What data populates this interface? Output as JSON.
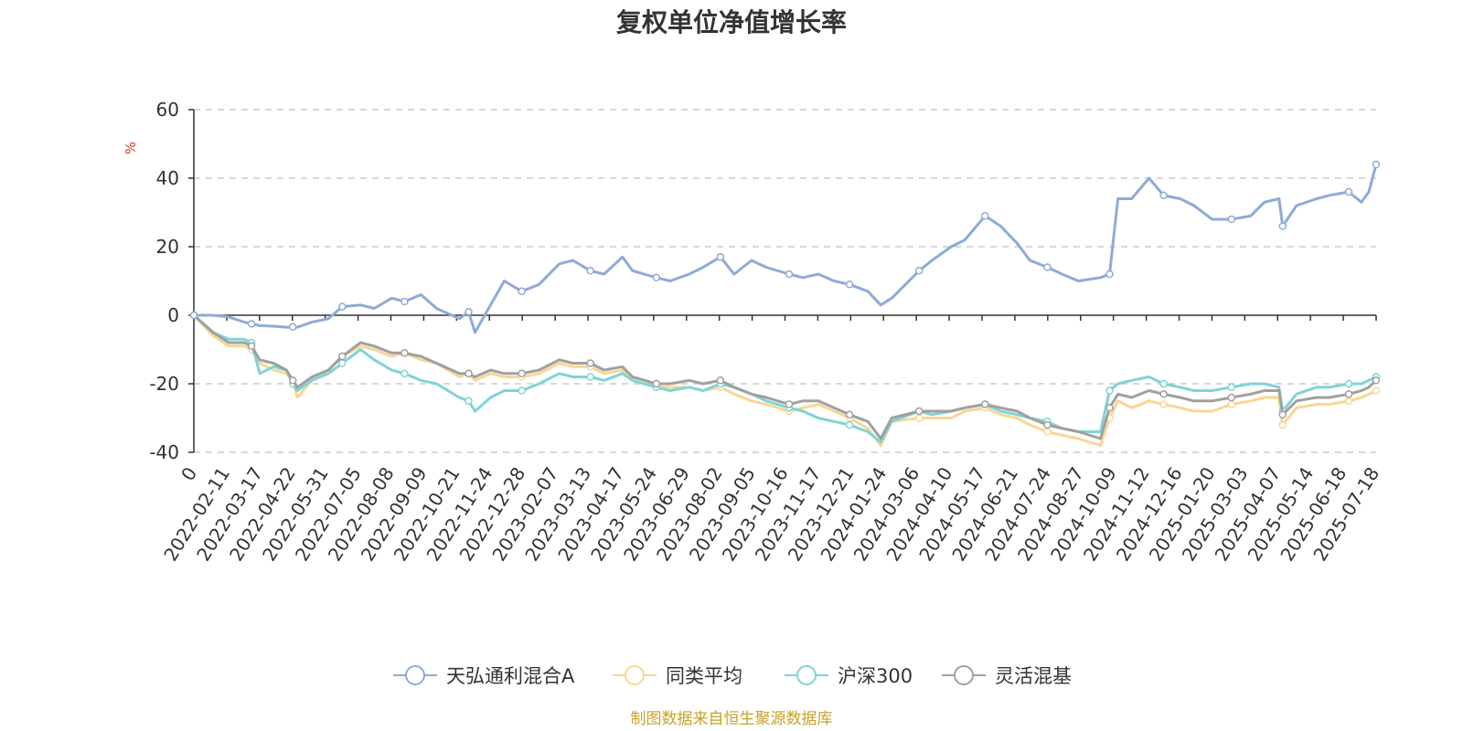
{
  "title": "复权单位净值增长率",
  "source_note": "制图数据来自恒生聚源数据库",
  "chart_data": {
    "type": "line",
    "title": "复权单位净值增长率",
    "ylabel": "%",
    "ylim": [
      -40,
      60
    ],
    "yticks": [
      60,
      40,
      20,
      0,
      -20,
      -40
    ],
    "grid": true,
    "legend_position": "bottom",
    "x_ticks": [
      "0",
      "2022-02-11",
      "2022-03-17",
      "2022-04-22",
      "2022-05-31",
      "2022-07-05",
      "2022-08-08",
      "2022-09-09",
      "2022-10-21",
      "2022-11-24",
      "2022-12-28",
      "2023-02-07",
      "2023-03-13",
      "2023-04-17",
      "2023-05-24",
      "2023-06-29",
      "2023-08-02",
      "2023-09-05",
      "2023-10-16",
      "2023-11-17",
      "2023-12-21",
      "2024-01-24",
      "2024-03-06",
      "2024-04-10",
      "2024-05-17",
      "2024-06-21",
      "2024-07-24",
      "2024-08-27",
      "2024-10-09",
      "2024-11-12",
      "2024-12-16",
      "2025-01-20",
      "2025-03-03",
      "2025-04-07",
      "2025-05-14",
      "2025-06-18",
      "2025-07-18"
    ],
    "x": [
      "2022-01-04",
      "2022-01-25",
      "2022-02-11",
      "2022-02-28",
      "2022-03-08",
      "2022-03-17",
      "2022-04-01",
      "2022-04-15",
      "2022-04-22",
      "2022-04-27",
      "2022-05-13",
      "2022-05-31",
      "2022-06-15",
      "2022-07-05",
      "2022-07-20",
      "2022-08-08",
      "2022-08-22",
      "2022-09-09",
      "2022-09-26",
      "2022-10-21",
      "2022-10-31",
      "2022-11-07",
      "2022-11-24",
      "2022-12-09",
      "2022-12-28",
      "2023-01-16",
      "2023-02-07",
      "2023-02-22",
      "2023-03-13",
      "2023-03-28",
      "2023-04-17",
      "2023-04-28",
      "2023-05-24",
      "2023-06-08",
      "2023-06-29",
      "2023-07-14",
      "2023-08-02",
      "2023-08-17",
      "2023-09-05",
      "2023-09-21",
      "2023-10-16",
      "2023-10-31",
      "2023-11-17",
      "2023-12-04",
      "2023-12-21",
      "2024-01-10",
      "2024-01-24",
      "2024-02-05",
      "2024-03-06",
      "2024-03-20",
      "2024-04-10",
      "2024-04-25",
      "2024-05-17",
      "2024-06-03",
      "2024-06-21",
      "2024-07-05",
      "2024-07-24",
      "2024-08-09",
      "2024-08-27",
      "2024-09-20",
      "2024-09-30",
      "2024-10-09",
      "2024-10-24",
      "2024-11-12",
      "2024-11-28",
      "2024-12-16",
      "2024-12-31",
      "2025-01-20",
      "2025-02-10",
      "2025-03-03",
      "2025-03-18",
      "2025-04-03",
      "2025-04-07",
      "2025-04-22",
      "2025-05-14",
      "2025-05-28",
      "2025-06-18",
      "2025-07-02",
      "2025-07-10",
      "2025-07-18"
    ],
    "series": [
      {
        "name": "天弘通利混合A",
        "color": "#8eabd6",
        "values": [
          0,
          0,
          -0.5,
          -2,
          -2.5,
          -3,
          -3.2,
          -3.5,
          -3.4,
          -3.5,
          -2,
          -1,
          2.5,
          3,
          2,
          5,
          4,
          6,
          2,
          -1,
          1,
          -5,
          3,
          10,
          7,
          9,
          15,
          16,
          13,
          12,
          17,
          13,
          11,
          10,
          12,
          14,
          17,
          12,
          16,
          14,
          12,
          11,
          12,
          10,
          9,
          7,
          3,
          5,
          13,
          16,
          20,
          22,
          29,
          26,
          21,
          16,
          14,
          12,
          10,
          11,
          12,
          34,
          34,
          40,
          35,
          34,
          32,
          28,
          28,
          29,
          33,
          34,
          26,
          32,
          34,
          35,
          36,
          33,
          36,
          44
        ]
      },
      {
        "name": "同类平均",
        "color": "#f9d695",
        "values": [
          0,
          -6,
          -9,
          -9,
          -10,
          -14,
          -16,
          -17,
          -19,
          -24,
          -19,
          -16,
          -12,
          -9,
          -10,
          -12,
          -11,
          -13,
          -14,
          -18,
          -17,
          -19,
          -17,
          -18,
          -18,
          -17,
          -14,
          -15,
          -15,
          -17,
          -16,
          -19,
          -21,
          -21,
          -21,
          -22,
          -21,
          -23,
          -25,
          -26,
          -28,
          -27,
          -26,
          -28,
          -30,
          -33,
          -38,
          -31,
          -30,
          -30,
          -30,
          -28,
          -27,
          -29,
          -30,
          -32,
          -34,
          -35,
          -36,
          -38,
          -30,
          -25,
          -27,
          -25,
          -26,
          -27,
          -28,
          -28,
          -26,
          -25,
          -24,
          -24,
          -32,
          -27,
          -26,
          -26,
          -25,
          -24,
          -23,
          -22
        ]
      },
      {
        "name": "沪深300",
        "color": "#7fd4d6",
        "values": [
          0,
          -5,
          -7,
          -7,
          -8,
          -17,
          -15,
          -16,
          -20,
          -22,
          -19,
          -17,
          -14,
          -10,
          -13,
          -16,
          -17,
          -19,
          -20,
          -24,
          -25,
          -28,
          -24,
          -22,
          -22,
          -20,
          -17,
          -18,
          -18,
          -19,
          -17,
          -19,
          -21,
          -22,
          -21,
          -22,
          -20,
          -21,
          -23,
          -25,
          -27,
          -28,
          -30,
          -31,
          -32,
          -34,
          -37,
          -31,
          -28,
          -29,
          -28,
          -27,
          -26,
          -28,
          -29,
          -30,
          -31,
          -33,
          -34,
          -34,
          -22,
          -20,
          -19,
          -18,
          -20,
          -21,
          -22,
          -22,
          -21,
          -20,
          -20,
          -21,
          -28,
          -23,
          -21,
          -21,
          -20,
          -20,
          -19,
          -18
        ]
      },
      {
        "name": "灵活混基",
        "color": "#a0a0a0",
        "values": [
          0,
          -5,
          -8,
          -8,
          -9,
          -13,
          -14,
          -16,
          -19,
          -21,
          -18,
          -16,
          -12,
          -8,
          -9,
          -11,
          -11,
          -12,
          -14,
          -17,
          -17,
          -18,
          -16,
          -17,
          -17,
          -16,
          -13,
          -14,
          -14,
          -16,
          -15,
          -18,
          -20,
          -20,
          -19,
          -20,
          -19,
          -21,
          -23,
          -24,
          -26,
          -25,
          -25,
          -27,
          -29,
          -31,
          -36,
          -30,
          -28,
          -28,
          -28,
          -27,
          -26,
          -27,
          -28,
          -30,
          -32,
          -33,
          -34,
          -36,
          -27,
          -23,
          -24,
          -22,
          -23,
          -24,
          -25,
          -25,
          -24,
          -23,
          -22,
          -22,
          -29,
          -25,
          -24,
          -24,
          -23,
          -22,
          -21,
          -19
        ]
      }
    ]
  }
}
